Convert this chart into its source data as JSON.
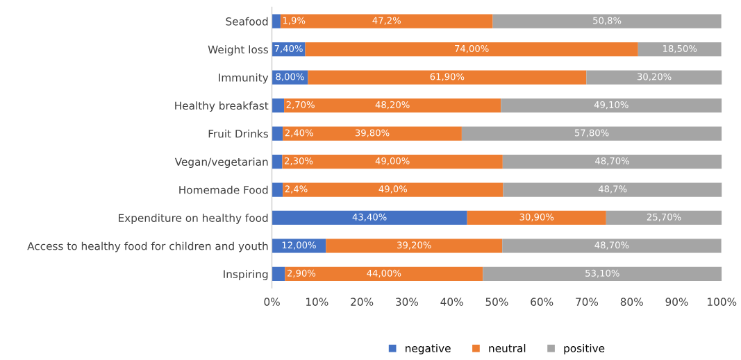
{
  "chart_data": {
    "type": "bar",
    "orientation": "horizontal",
    "stacked": true,
    "legend": "bottom",
    "grid": false,
    "categories": [
      "Seafood",
      "Weight loss",
      "Immunity",
      "Healthy breakfast",
      "Fruit Drinks",
      "Vegan/vegetarian",
      "Homemade Food",
      "Expenditure on healthy food",
      "Access to healthy food for children and youth",
      "Inspiring"
    ],
    "xlim": [
      0,
      100
    ],
    "xticks": [
      {
        "value": 0,
        "label": "0%"
      },
      {
        "value": 10,
        "label": "10%"
      },
      {
        "value": 20,
        "label": "20%"
      },
      {
        "value": 30,
        "label": "30%"
      },
      {
        "value": 40,
        "label": "40%"
      },
      {
        "value": 50,
        "label": "50%"
      },
      {
        "value": 60,
        "label": "60%"
      },
      {
        "value": 70,
        "label": "70%"
      },
      {
        "value": 80,
        "label": "80%"
      },
      {
        "value": 90,
        "label": "90%"
      },
      {
        "value": 100,
        "label": "100%"
      }
    ],
    "series": [
      {
        "name": "negative",
        "color": "#4472c4",
        "values": [
          1.9,
          7.4,
          8.0,
          2.7,
          2.4,
          2.3,
          2.4,
          43.4,
          12.0,
          2.9
        ],
        "value_labels": [
          "1,9%",
          "7,40%",
          "8,00%",
          "2,70%",
          "2,40%",
          "2,30%",
          "2,4%",
          "43,40%",
          "12,00%",
          "2,90%"
        ]
      },
      {
        "name": "neutral",
        "color": "#ed7d31",
        "values": [
          47.2,
          74.0,
          61.9,
          48.2,
          39.8,
          49.0,
          49.0,
          30.9,
          39.2,
          44.0
        ],
        "value_labels": [
          "47,2%",
          "74,00%",
          "61,90%",
          "48,20%",
          "39,80%",
          "49,00%",
          "49,0%",
          "30,90%",
          "39,20%",
          "44,00%"
        ]
      },
      {
        "name": "positive",
        "color": "#a5a5a5",
        "values": [
          50.8,
          18.5,
          30.2,
          49.1,
          57.8,
          48.7,
          48.7,
          25.7,
          48.7,
          53.1
        ],
        "value_labels": [
          "50,8%",
          "18,50%",
          "30,20%",
          "49,10%",
          "57,80%",
          "48,70%",
          "48,7%",
          "25,70%",
          "48,70%",
          "53,10%"
        ]
      }
    ]
  }
}
